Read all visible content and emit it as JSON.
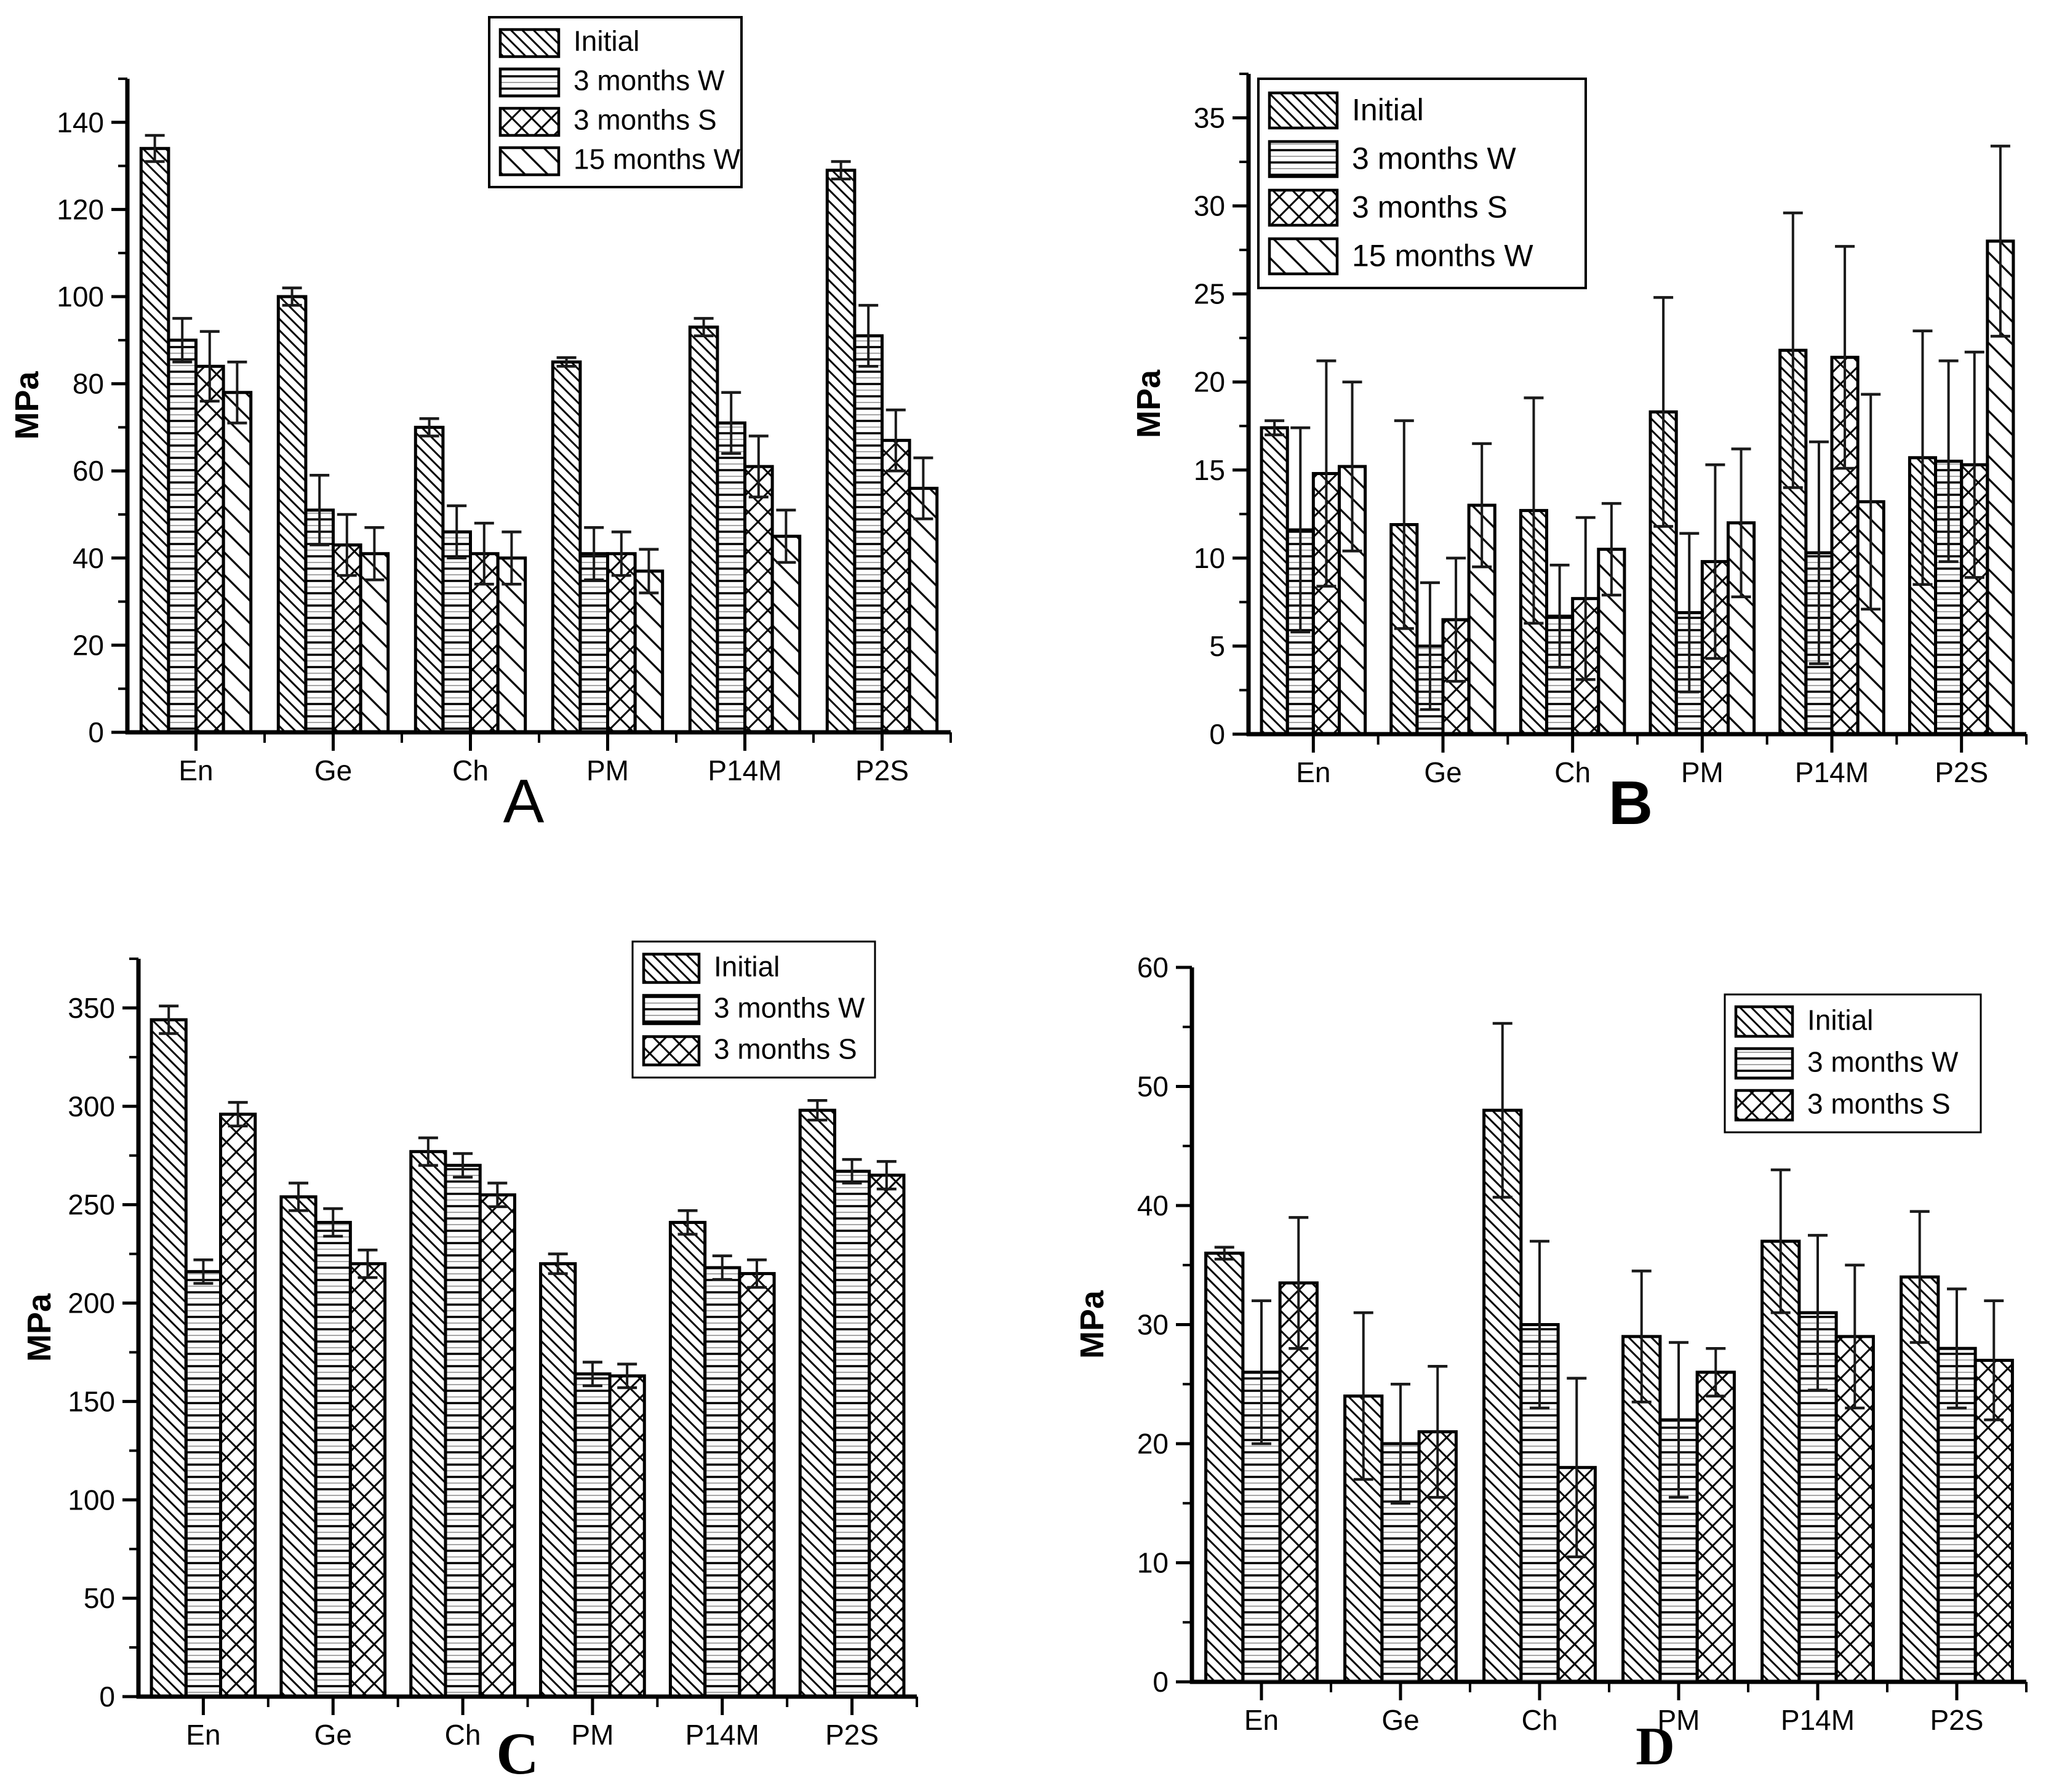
{
  "figure": {
    "background": "#ffffff",
    "ink_color": "#000000",
    "categories": [
      "En",
      "Ge",
      "Ch",
      "PM",
      "P14M",
      "P2S"
    ],
    "ylabel": "MPa"
  },
  "chart_data": [
    {
      "panel": "A",
      "type": "bar",
      "ylabel": "MPa",
      "categories": [
        "En",
        "Ge",
        "Ch",
        "PM",
        "P14M",
        "P2S"
      ],
      "ylim": [
        0,
        150
      ],
      "ytick_step": 20,
      "ytick_max_label": 140,
      "ytick_minor_step": 10,
      "grid": "off",
      "legend_position": "top-center",
      "legend": [
        "Initial",
        "3 months W",
        "3 months S",
        "15 months W"
      ],
      "series": [
        {
          "name": "Initial",
          "pattern": "diagonal",
          "values": [
            134,
            100,
            70,
            85,
            93,
            129
          ],
          "errors": [
            3,
            2,
            2,
            1,
            2,
            2
          ]
        },
        {
          "name": "3 months W",
          "pattern": "horizontal",
          "values": [
            90,
            51,
            46,
            41,
            71,
            91
          ],
          "errors": [
            5,
            8,
            6,
            6,
            7,
            7
          ]
        },
        {
          "name": "3 months S",
          "pattern": "crosshatch",
          "values": [
            84,
            43,
            41,
            41,
            61,
            67
          ],
          "errors": [
            8,
            7,
            7,
            5,
            7,
            7
          ]
        },
        {
          "name": "15 months W",
          "pattern": "diagonal-sparse",
          "values": [
            78,
            41,
            40,
            37,
            45,
            56
          ],
          "errors": [
            7,
            6,
            6,
            5,
            6,
            7
          ]
        }
      ]
    },
    {
      "panel": "B",
      "type": "bar",
      "ylabel": "MPa",
      "categories": [
        "En",
        "Ge",
        "Ch",
        "PM",
        "P14M",
        "P2S"
      ],
      "ylim": [
        0,
        37.5
      ],
      "ytick_step": 5,
      "ytick_max_label": 35,
      "ytick_minor_step": 2.5,
      "grid": "off",
      "legend_position": "top-left",
      "legend": [
        "Initial",
        "3 months W",
        "3 months S",
        "15 months W"
      ],
      "series": [
        {
          "name": "Initial",
          "pattern": "diagonal",
          "values": [
            17.4,
            11.9,
            12.7,
            18.3,
            21.8,
            15.7
          ],
          "errors": [
            0.4,
            5.9,
            6.4,
            6.5,
            7.8,
            7.2
          ]
        },
        {
          "name": "3 months W",
          "pattern": "horizontal",
          "values": [
            11.6,
            5.0,
            6.7,
            6.9,
            10.3,
            15.5
          ],
          "errors": [
            5.8,
            3.6,
            2.9,
            4.5,
            6.3,
            5.7
          ]
        },
        {
          "name": "3 months S",
          "pattern": "crosshatch",
          "values": [
            14.8,
            6.5,
            7.7,
            9.8,
            21.4,
            15.3
          ],
          "errors": [
            6.4,
            3.5,
            4.6,
            5.5,
            6.3,
            6.4
          ]
        },
        {
          "name": "15 months W",
          "pattern": "diagonal-sparse",
          "values": [
            15.2,
            13.0,
            10.5,
            12.0,
            13.2,
            28.0
          ],
          "errors": [
            4.8,
            3.5,
            2.6,
            4.2,
            6.1,
            5.4
          ]
        }
      ]
    },
    {
      "panel": "C",
      "type": "bar",
      "ylabel": "MPa",
      "categories": [
        "En",
        "Ge",
        "Ch",
        "PM",
        "P14M",
        "P2S"
      ],
      "ylim": [
        0,
        375
      ],
      "ytick_step": 50,
      "ytick_max_label": 350,
      "ytick_minor_step": 25,
      "grid": "off",
      "legend_position": "top-right",
      "legend": [
        "Initial",
        "3 months W",
        "3 months S"
      ],
      "series": [
        {
          "name": "Initial",
          "pattern": "diagonal",
          "values": [
            344,
            254,
            277,
            220,
            241,
            298
          ],
          "errors": [
            7,
            7,
            7,
            5,
            6,
            5
          ]
        },
        {
          "name": "3 months W",
          "pattern": "horizontal",
          "values": [
            216,
            241,
            270,
            164,
            218,
            267
          ],
          "errors": [
            6,
            7,
            6,
            6,
            6,
            6
          ]
        },
        {
          "name": "3 months S",
          "pattern": "crosshatch",
          "values": [
            296,
            220,
            255,
            163,
            215,
            265
          ],
          "errors": [
            6,
            7,
            6,
            6,
            7,
            7
          ]
        }
      ]
    },
    {
      "panel": "D",
      "type": "bar",
      "ylabel": "MPa",
      "categories": [
        "En",
        "Ge",
        "Ch",
        "PM",
        "P14M",
        "P2S"
      ],
      "ylim": [
        0,
        60
      ],
      "ytick_step": 10,
      "ytick_max_label": 60,
      "ytick_minor_step": 5,
      "grid": "off",
      "legend_position": "top-right",
      "legend": [
        "Initial",
        "3 months W",
        "3 months S"
      ],
      "series": [
        {
          "name": "Initial",
          "pattern": "diagonal",
          "values": [
            36,
            24,
            48,
            29,
            37,
            34
          ],
          "errors": [
            0.5,
            7,
            7.3,
            5.5,
            6,
            5.5
          ]
        },
        {
          "name": "3 months W",
          "pattern": "horizontal",
          "values": [
            26,
            20,
            30,
            22,
            31,
            28
          ],
          "errors": [
            6,
            5,
            7,
            6.5,
            6.5,
            5
          ]
        },
        {
          "name": "3 months S",
          "pattern": "crosshatch",
          "values": [
            33.5,
            21,
            18,
            26,
            29,
            27
          ],
          "errors": [
            5.5,
            5.5,
            7.5,
            2,
            6,
            5
          ]
        }
      ]
    }
  ]
}
